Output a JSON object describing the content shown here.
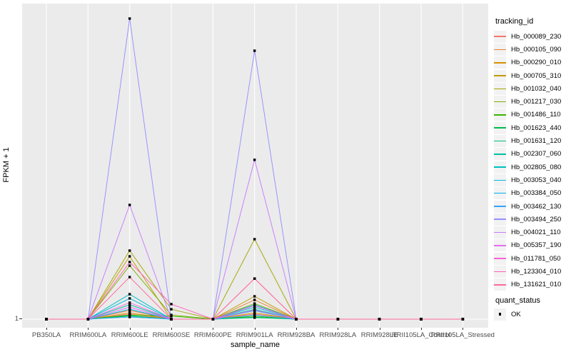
{
  "figure": {
    "y_axis_title": "FPKM + 1",
    "x_axis_title": "sample_name",
    "y_tick_label": "1"
  },
  "legend": {
    "tracking_title": "tracking_id",
    "quant_title": "quant_status",
    "quant_ok_label": "OK",
    "key_bg": "#F2F2F2",
    "point_color": "#000000"
  },
  "chart_data": {
    "type": "line",
    "title": "",
    "xlabel": "sample_name",
    "ylabel": "FPKM + 1",
    "y_ticks": [
      "1"
    ],
    "y_note": "log-style axis; only the value 1 is labeled. Series values below are fractions of panel height above the y=1 baseline (1.0 = tallest peak).",
    "panel_bg": "#EBEBEB",
    "grid_color": "#FFFFFF",
    "legend_position": "right",
    "point_marker": {
      "shape": "square",
      "color": "#000000",
      "status_label": "OK"
    },
    "categories": [
      "PB350LA",
      "RRIM600LA",
      "RRIM600LE",
      "RRIM600SE",
      "RRIM600PE",
      "RRIM901LA",
      "RRIM928BA",
      "RRIM928LA",
      "RRIM928LE",
      "RRII105LA_Control",
      "RRII105LA_Stressed"
    ],
    "series": [
      {
        "name": "Hb_000089_230",
        "color": "#F8766D",
        "values": [
          0,
          0,
          0.017,
          0,
          0,
          0.017,
          0,
          0,
          0,
          0,
          0
        ]
      },
      {
        "name": "Hb_000105_090",
        "color": "#EA8331",
        "values": [
          0,
          0,
          0.029,
          0,
          0,
          0.064,
          0,
          0,
          0,
          0,
          0
        ]
      },
      {
        "name": "Hb_000290_010",
        "color": "#D89000",
        "values": [
          0,
          0,
          0.021,
          0,
          0,
          0.021,
          0,
          0,
          0,
          0,
          0
        ]
      },
      {
        "name": "Hb_000705_310",
        "color": "#C09B00",
        "values": [
          0,
          0,
          0.209,
          0,
          0,
          0.076,
          0,
          0,
          0,
          0,
          0
        ]
      },
      {
        "name": "Hb_001032_040",
        "color": "#A3A500",
        "values": [
          0,
          0,
          0.228,
          0.033,
          0,
          0.266,
          0,
          0,
          0,
          0,
          0
        ]
      },
      {
        "name": "Hb_001217_030",
        "color": "#7CAE00",
        "values": [
          0,
          0,
          0.178,
          0.014,
          0,
          0.052,
          0,
          0,
          0,
          0,
          0
        ]
      },
      {
        "name": "Hb_001486_110",
        "color": "#39B600",
        "values": [
          0,
          0,
          0.014,
          0.01,
          0,
          0.01,
          0,
          0,
          0,
          0,
          0
        ]
      },
      {
        "name": "Hb_001623_440",
        "color": "#00BB4E",
        "values": [
          0,
          0,
          0.012,
          0,
          0,
          0.007,
          0,
          0,
          0,
          0,
          0
        ]
      },
      {
        "name": "Hb_001631_120",
        "color": "#00BF7D",
        "values": [
          0,
          0,
          0.01,
          0,
          0,
          0.005,
          0,
          0,
          0,
          0,
          0
        ]
      },
      {
        "name": "Hb_002307_060",
        "color": "#00C1A3",
        "values": [
          0,
          0,
          0.048,
          0,
          0,
          0.033,
          0,
          0,
          0,
          0,
          0
        ]
      },
      {
        "name": "Hb_002805_080",
        "color": "#00BFC4",
        "values": [
          0,
          0,
          0.083,
          0,
          0,
          0.048,
          0,
          0,
          0,
          0,
          0
        ]
      },
      {
        "name": "Hb_003053_040",
        "color": "#00BAE0",
        "values": [
          0,
          0,
          0.069,
          0,
          0,
          0.04,
          0,
          0,
          0,
          0,
          0
        ]
      },
      {
        "name": "Hb_003384_050",
        "color": "#00B0F6",
        "values": [
          0,
          0,
          0.033,
          0,
          0,
          0.028,
          0,
          0,
          0,
          0,
          0
        ]
      },
      {
        "name": "Hb_003462_130",
        "color": "#35A2FF",
        "values": [
          0,
          0,
          0.007,
          0,
          0,
          0.014,
          0,
          0,
          0,
          0,
          0
        ]
      },
      {
        "name": "Hb_003494_250",
        "color": "#9590FF",
        "values": [
          0,
          0,
          1.0,
          0,
          0,
          0.893,
          0,
          0,
          0,
          0,
          0
        ]
      },
      {
        "name": "Hb_004021_110",
        "color": "#C77CFF",
        "values": [
          0,
          0,
          0.38,
          0,
          0,
          0.53,
          0,
          0,
          0,
          0,
          0
        ]
      },
      {
        "name": "Hb_005357_190",
        "color": "#E76BF3",
        "values": [
          0,
          0,
          0.04,
          0,
          0,
          0.03,
          0,
          0,
          0,
          0,
          0
        ]
      },
      {
        "name": "Hb_011781_050",
        "color": "#FA62DB",
        "values": [
          0,
          0,
          0.055,
          0,
          0,
          0.045,
          0,
          0,
          0,
          0,
          0
        ]
      },
      {
        "name": "Hb_123304_010",
        "color": "#FF62BC",
        "values": [
          0,
          0,
          0.19,
          0.05,
          0,
          0.135,
          0,
          0,
          0,
          0,
          0
        ]
      },
      {
        "name": "Hb_131621_010",
        "color": "#FF6A98",
        "values": [
          0,
          0,
          0.14,
          0,
          0,
          0.135,
          0,
          0,
          0,
          0,
          0
        ]
      }
    ]
  }
}
